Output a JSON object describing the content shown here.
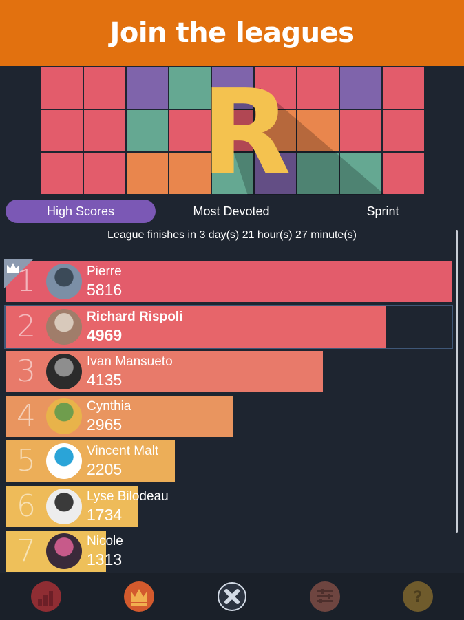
{
  "header": {
    "title": "Join the leagues"
  },
  "banner": {
    "letter": "R"
  },
  "tabs": [
    {
      "label": "High Scores",
      "active": true
    },
    {
      "label": "Most Devoted",
      "active": false
    },
    {
      "label": "Sprint",
      "active": false
    }
  ],
  "league": {
    "info": "League finishes in 3 day(s) 21 hour(s) 27 minute(s)"
  },
  "leaderboard": [
    {
      "rank": "1",
      "name": "Pierre",
      "score": "5816",
      "color": "#e35c6b",
      "fill": 1.0
    },
    {
      "rank": "2",
      "name": "Richard Rispoli",
      "score": "4969",
      "color": "#e7656a",
      "fill": 0.854
    },
    {
      "rank": "3",
      "name": "Ivan Mansueto",
      "score": "4135",
      "color": "#e87a6a",
      "fill": 0.711
    },
    {
      "rank": "4",
      "name": "Cynthia",
      "score": "2965",
      "color": "#e9955f",
      "fill": 0.51
    },
    {
      "rank": "5",
      "name": "Vincent Malt",
      "score": "2205",
      "color": "#ecae58",
      "fill": 0.379
    },
    {
      "rank": "6",
      "name": "Lyse Bilodeau",
      "score": "1734",
      "color": "#eebb59",
      "fill": 0.298
    },
    {
      "rank": "7",
      "name": "Nicole",
      "score": "1313",
      "color": "#eec05a",
      "fill": 0.226
    }
  ],
  "colors": {
    "header": "#e2710f",
    "background": "#1e2530",
    "tab_active": "#7b58b5",
    "crown": "#8d9bb0"
  },
  "bottom_nav": [
    {
      "icon": "bar-chart-icon",
      "color": "#8f2d33"
    },
    {
      "icon": "crown-icon",
      "color": "#d35a2d"
    },
    {
      "icon": "close-icon",
      "color": "#d3dbe6"
    },
    {
      "icon": "settings-sliders-icon",
      "color": "#6e4540"
    },
    {
      "icon": "help-icon",
      "color": "#6f5b2c"
    }
  ]
}
